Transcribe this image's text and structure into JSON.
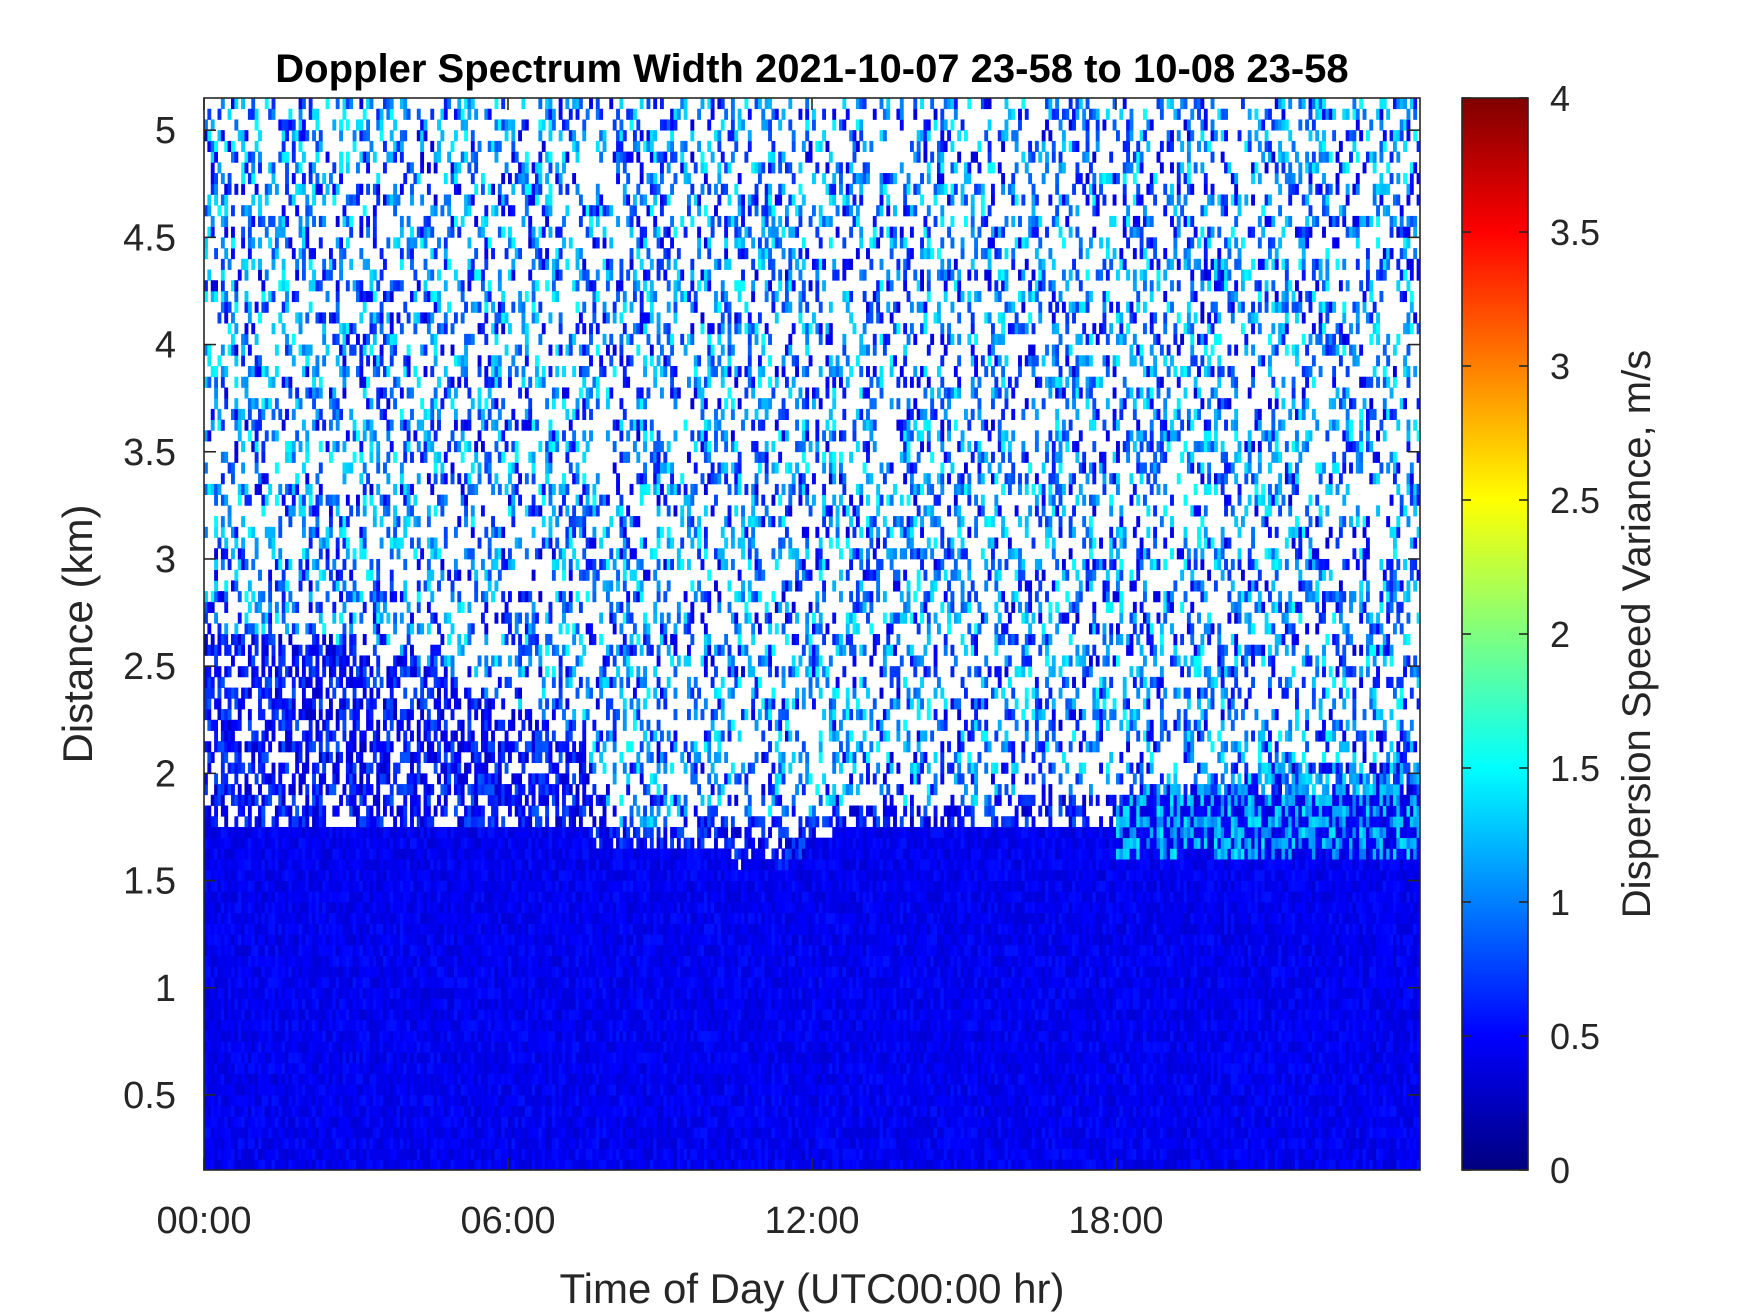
{
  "chart_data": {
    "type": "heatmap",
    "title": "Doppler Spectrum Width 2021-10-07 23-58 to 10-08 23-58",
    "xlabel": "Time of Day (UTC00:00 hr)",
    "ylabel": "Distance (km)",
    "colorbar_label": "Dispersion Speed Variance, m/s",
    "x_range_hours": [
      0,
      24
    ],
    "x_ticks": [
      {
        "value": 0,
        "label": "00:00"
      },
      {
        "value": 6,
        "label": "06:00"
      },
      {
        "value": 12,
        "label": "12:00"
      },
      {
        "value": 18,
        "label": "18:00"
      }
    ],
    "ylim": [
      0.15,
      5.15
    ],
    "y_ticks": [
      {
        "value": 0.5,
        "label": "0.5"
      },
      {
        "value": 1,
        "label": "1"
      },
      {
        "value": 1.5,
        "label": "1.5"
      },
      {
        "value": 2,
        "label": "2"
      },
      {
        "value": 2.5,
        "label": "2.5"
      },
      {
        "value": 3,
        "label": "3"
      },
      {
        "value": 3.5,
        "label": "3.5"
      },
      {
        "value": 4,
        "label": "4"
      },
      {
        "value": 4.5,
        "label": "4.5"
      },
      {
        "value": 5,
        "label": "5"
      }
    ],
    "clim": [
      0,
      4
    ],
    "colorbar_ticks": [
      {
        "value": 0,
        "label": "0"
      },
      {
        "value": 0.5,
        "label": "0.5"
      },
      {
        "value": 1,
        "label": "1"
      },
      {
        "value": 1.5,
        "label": "1.5"
      },
      {
        "value": 2,
        "label": "2"
      },
      {
        "value": 2.5,
        "label": "2.5"
      },
      {
        "value": 3,
        "label": "3"
      },
      {
        "value": 3.5,
        "label": "3.5"
      },
      {
        "value": 4,
        "label": "4"
      }
    ],
    "colormap": "jet",
    "colormap_stops": [
      "#00007f",
      "#0000ff",
      "#007fff",
      "#00ffff",
      "#7fff7f",
      "#ffff00",
      "#ff7f00",
      "#ff0000",
      "#7f0000"
    ],
    "no_data_color": "#ffffff",
    "structure": {
      "dense_layer_top_km": [
        {
          "hour": 0.0,
          "top": 1.75
        },
        {
          "hour": 7.5,
          "top": 1.75
        },
        {
          "hour": 7.8,
          "top": 1.65
        },
        {
          "hour": 10.3,
          "top": 1.65
        },
        {
          "hour": 10.6,
          "top": 1.55
        },
        {
          "hour": 11.0,
          "top": 1.65
        },
        {
          "hour": 11.4,
          "top": 1.55
        },
        {
          "hour": 12.0,
          "top": 1.65
        },
        {
          "hour": 12.5,
          "top": 1.75
        },
        {
          "hour": 18.0,
          "top": 1.75
        },
        {
          "hour": 18.2,
          "top": 1.9
        },
        {
          "hour": 24.0,
          "top": 1.9
        }
      ],
      "mixed_layer_top_km": [
        {
          "hour": 0.0,
          "top": 2.65
        },
        {
          "hour": 2.0,
          "top": 2.65
        },
        {
          "hour": 4.0,
          "top": 2.55
        },
        {
          "hour": 7.5,
          "top": 2.15
        },
        {
          "hour": 8.0,
          "top": 1.75
        },
        {
          "hour": 20.0,
          "top": 1.95
        },
        {
          "hour": 21.0,
          "top": 2.05
        },
        {
          "hour": 24.0,
          "top": 2.05
        }
      ],
      "dense_layer_value_mean": 0.45,
      "evening_layer_value_mean": 1.2,
      "noise_value_mean": 0.7
    }
  }
}
